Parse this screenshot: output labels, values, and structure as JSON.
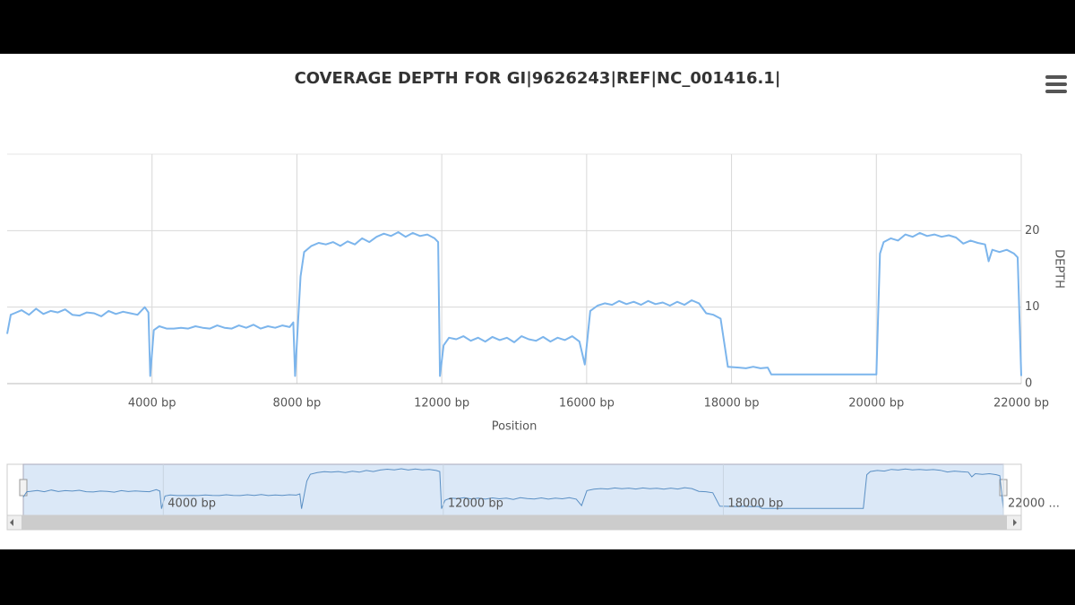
{
  "chart_data": {
    "type": "line",
    "title": "COVERAGE DEPTH FOR GI|9626243|REF|NC_001416.1|",
    "x_label": "Position",
    "y_label": "DEPTH",
    "color": "#7cb5ec",
    "grid": true,
    "x": [
      0,
      100,
      200,
      400,
      600,
      800,
      1000,
      1200,
      1400,
      1600,
      1800,
      2000,
      2200,
      2400,
      2600,
      2800,
      3000,
      3200,
      3400,
      3600,
      3800,
      3900,
      3950,
      4050,
      4200,
      4400,
      4600,
      4800,
      5000,
      5200,
      5400,
      5600,
      5800,
      6000,
      6200,
      6400,
      6600,
      6800,
      7000,
      7200,
      7400,
      7600,
      7800,
      7900,
      7950,
      8100,
      8200,
      8400,
      8600,
      8800,
      9000,
      9200,
      9400,
      9600,
      9800,
      10000,
      10200,
      10400,
      10600,
      10800,
      11000,
      11200,
      11400,
      11600,
      11800,
      11900,
      11950,
      12050,
      12200,
      12400,
      12600,
      12800,
      13000,
      13200,
      13400,
      13600,
      13800,
      14000,
      14200,
      14400,
      14600,
      14800,
      15000,
      15200,
      15400,
      15600,
      15800,
      15900,
      15950,
      16050,
      16150,
      16250,
      16350,
      16450,
      16550,
      16650,
      16750,
      16850,
      16950,
      17050,
      17150,
      17250,
      17350,
      17450,
      17550,
      17650,
      17750,
      17850,
      17950,
      18100,
      18200,
      18300,
      18400,
      18500,
      18550,
      20000,
      20050,
      20100,
      20200,
      20300,
      20400,
      20500,
      20600,
      20700,
      20800,
      20900,
      21000,
      21100,
      21200,
      21300,
      21400,
      21500,
      21550,
      21600,
      21700,
      21800,
      21900,
      21950,
      22000
    ],
    "values": [
      6.5,
      9,
      9.2,
      9.6,
      9,
      9.8,
      9.1,
      9.5,
      9.3,
      9.7,
      9,
      8.9,
      9.3,
      9.2,
      8.8,
      9.5,
      9.1,
      9.4,
      9.2,
      9,
      10,
      9.3,
      1,
      7,
      7.5,
      7.2,
      7.2,
      7.3,
      7.2,
      7.5,
      7.3,
      7.2,
      7.6,
      7.3,
      7.2,
      7.6,
      7.3,
      7.7,
      7.2,
      7.5,
      7.3,
      7.6,
      7.4,
      8,
      1,
      14,
      17.2,
      18,
      18.4,
      18.2,
      18.5,
      18,
      18.6,
      18.2,
      19,
      18.5,
      19.2,
      19.6,
      19.3,
      19.8,
      19.2,
      19.7,
      19.3,
      19.5,
      19,
      18.5,
      1,
      5,
      6,
      5.8,
      6.2,
      5.6,
      6,
      5.5,
      6.1,
      5.7,
      6,
      5.4,
      6.2,
      5.8,
      5.6,
      6.1,
      5.5,
      6,
      5.7,
      6.2,
      5.5,
      3.5,
      2.5,
      9.5,
      10.2,
      10.5,
      10.3,
      10.8,
      10.4,
      10.7,
      10.3,
      10.8,
      10.4,
      10.6,
      10.2,
      10.7,
      10.3,
      10.9,
      10.5,
      9.2,
      9,
      8.5,
      2.2,
      2.1,
      2,
      2.2,
      2,
      2.1,
      1.2,
      1.2,
      17,
      18.5,
      19,
      18.7,
      19.5,
      19.2,
      19.7,
      19.3,
      19.5,
      19.2,
      19.4,
      19.1,
      18.3,
      18.7,
      18.4,
      18.2,
      16,
      17.5,
      17.2,
      17.5,
      17,
      16.5,
      1
    ],
    "xlim": [
      0,
      22000
    ],
    "xticks": [
      {
        "value": 4000,
        "label": "4000 bp"
      },
      {
        "value": 8000,
        "label": "8000 bp"
      },
      {
        "value": 12000,
        "label": "12000 bp"
      },
      {
        "value": 16000,
        "label": "16000 bp"
      },
      {
        "value": 18000,
        "label": "18000 bp"
      },
      {
        "value": 20000,
        "label": "20000 bp"
      },
      {
        "value": 22000,
        "label": "22000 bp"
      }
    ],
    "ylim": [
      0,
      30
    ],
    "yticks": [
      0,
      10,
      20
    ],
    "navigator": {
      "xticks": [
        {
          "value": 4000,
          "label": "4000 bp"
        },
        {
          "value": 12000,
          "label": "12000 bp"
        },
        {
          "value": 18000,
          "label": "18000 bp"
        },
        {
          "value": 22000,
          "label": "22000 ..."
        }
      ]
    }
  }
}
